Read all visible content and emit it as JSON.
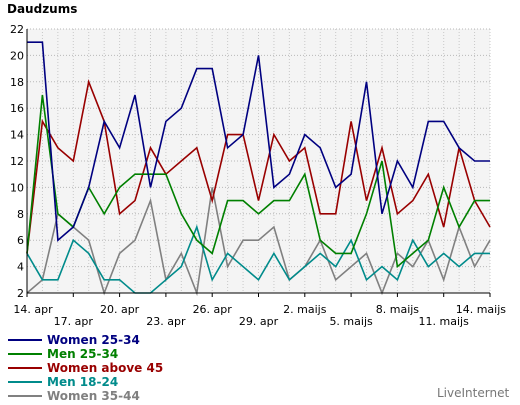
{
  "chart_data": {
    "type": "line",
    "title": "Daudzums",
    "xlabel": "",
    "ylabel": "",
    "ylim": [
      2,
      22
    ],
    "yticks": [
      2,
      4,
      6,
      8,
      10,
      12,
      14,
      16,
      18,
      20,
      22
    ],
    "grid": true,
    "legend_position": "bottom-left",
    "x_tick_labels": [
      {
        "index": 0,
        "label": "14. apr",
        "row": 0
      },
      {
        "index": 3,
        "label": "17. apr",
        "row": 1
      },
      {
        "index": 6,
        "label": "20. apr",
        "row": 0
      },
      {
        "index": 9,
        "label": "23. apr",
        "row": 1
      },
      {
        "index": 12,
        "label": "26. apr",
        "row": 0
      },
      {
        "index": 15,
        "label": "29. apr",
        "row": 1
      },
      {
        "index": 18,
        "label": "2. maijs",
        "row": 0
      },
      {
        "index": 21,
        "label": "5. maijs",
        "row": 1
      },
      {
        "index": 24,
        "label": "8. maijs",
        "row": 0
      },
      {
        "index": 27,
        "label": "11. maijs",
        "row": 1
      },
      {
        "index": 30,
        "label": "14. maijs",
        "row": 0
      }
    ],
    "series": [
      {
        "name": "Women 25-34",
        "color": "#000080",
        "values": [
          21,
          21,
          6,
          7,
          10,
          15,
          13,
          17,
          10,
          15,
          16,
          19,
          19,
          13,
          14,
          20,
          10,
          11,
          14,
          13,
          10,
          11,
          18,
          8,
          12,
          10,
          15,
          15,
          13,
          12,
          12
        ]
      },
      {
        "name": "Men 25-34",
        "color": "#008000",
        "values": [
          5,
          17,
          8,
          7,
          10,
          8,
          10,
          11,
          11,
          11,
          8,
          6,
          5,
          9,
          9,
          8,
          9,
          9,
          11,
          6,
          5,
          5,
          8,
          12,
          4,
          5,
          6,
          10,
          7,
          9,
          9
        ]
      },
      {
        "name": "Women above 45",
        "color": "#990000",
        "values": [
          5,
          15,
          13,
          12,
          18,
          15,
          8,
          9,
          13,
          11,
          12,
          13,
          9,
          14,
          14,
          9,
          14,
          12,
          13,
          8,
          8,
          15,
          9,
          13,
          8,
          9,
          11,
          7,
          13,
          9,
          7
        ]
      },
      {
        "name": "Men 18-24",
        "color": "#008B8B",
        "values": [
          5,
          3,
          3,
          6,
          5,
          3,
          3,
          2,
          2,
          3,
          4,
          7,
          3,
          5,
          4,
          3,
          5,
          3,
          4,
          5,
          4,
          6,
          3,
          4,
          3,
          6,
          4,
          5,
          4,
          5,
          5
        ]
      },
      {
        "name": "Women 35-44",
        "color": "#808080",
        "values": [
          2,
          3,
          8,
          7,
          6,
          2,
          5,
          6,
          9,
          3,
          5,
          2,
          10,
          4,
          6,
          6,
          7,
          3,
          4,
          6,
          3,
          4,
          5,
          2,
          5,
          4,
          6,
          3,
          7,
          4,
          6
        ]
      }
    ]
  },
  "credit": "LiveInternet"
}
